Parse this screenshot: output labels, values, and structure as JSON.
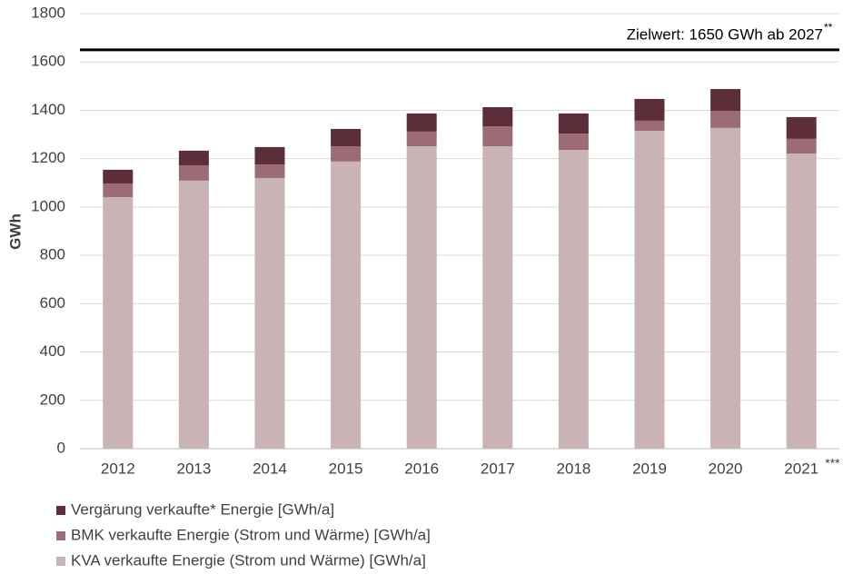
{
  "chart_data": {
    "type": "stacked_bar",
    "y_label": "GWh",
    "categories": [
      "2012",
      "2013",
      "2014",
      "2015",
      "2016",
      "2017",
      "2018",
      "2019",
      "2020",
      "2021"
    ],
    "category_footnote": "***",
    "series": [
      {
        "name": "KVA verkaufte Energie (Strom und Wärme) [GWh/a]",
        "color": "#c9b3b4",
        "values": [
          1041,
          1109,
          1120,
          1188,
          1251,
          1251,
          1236,
          1315,
          1327,
          1221
        ]
      },
      {
        "name": "BMK verkaufte Energie (Strom und Wärme) [GWh/a]",
        "color": "#9c6c76",
        "values": [
          56,
          63,
          56,
          63,
          61,
          83,
          68,
          42,
          71,
          61
        ]
      },
      {
        "name": "Vergärung verkaufte* Energie [GWh/a]",
        "color": "#5b2e3a",
        "values": [
          57,
          61,
          72,
          72,
          75,
          79,
          83,
          90,
          90,
          90
        ]
      }
    ],
    "target": 1650,
    "target_label": "Zielwert: 1650 GWh ab 2027",
    "target_footnote": "**",
    "ylim": [
      0,
      1800
    ],
    "yticks": [
      0,
      200,
      400,
      600,
      800,
      1000,
      1200,
      1400,
      1600,
      1800
    ],
    "grid": true
  }
}
